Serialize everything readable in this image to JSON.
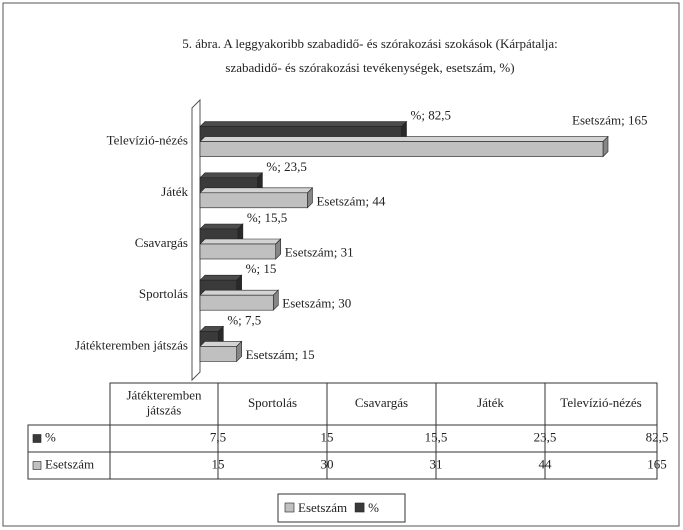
{
  "chart_data": {
    "type": "bar",
    "orientation": "horizontal",
    "title": [
      "5. ábra. A leggyakoribb szabadidő- és szórakozási szokások (Kárpátalja:",
      "szabadidő- és szórakozási tevékenységek, esetszám, %)"
    ],
    "categories": [
      "Játékteremben játszás",
      "Sportolás",
      "Csavargás",
      "Játék",
      "Televízió-nézés"
    ],
    "table_headers": [
      [
        "Játékteremben",
        "játszás"
      ],
      [
        "Sportolás"
      ],
      [
        "Csavargás"
      ],
      [
        "Játék"
      ],
      [
        "Televízió-nézés"
      ]
    ],
    "series": [
      {
        "name": "%",
        "color": "#3a3a3a",
        "values": [
          7.5,
          15,
          15.5,
          23.5,
          82.5
        ],
        "value_labels": [
          "%; 7,5",
          "%; 15",
          "%; 15,5",
          "%; 23,5",
          "%; 82,5"
        ],
        "table_values": [
          "7,5",
          "15",
          "15,5",
          "23,5",
          "82,5"
        ]
      },
      {
        "name": "Esetszám",
        "color": "#c0c0c0",
        "values": [
          15,
          30,
          31,
          44,
          165
        ],
        "value_labels": [
          "Esetszám; 15",
          "Esetszám; 30",
          "Esetszám; 31",
          "Esetszám; 44",
          "Esetszám; 165"
        ],
        "table_values": [
          "15",
          "30",
          "31",
          "44",
          "165"
        ]
      }
    ],
    "legend": "bottom"
  }
}
